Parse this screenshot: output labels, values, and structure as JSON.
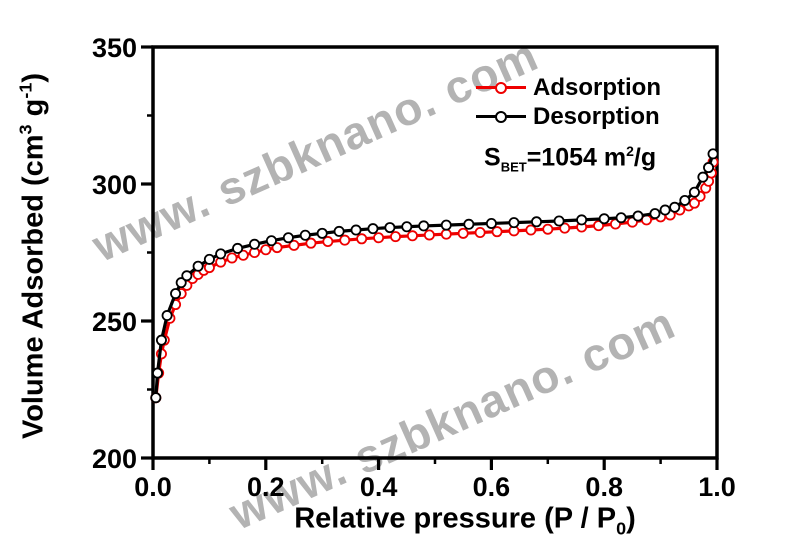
{
  "figure": {
    "background": "#ffffff",
    "watermark": {
      "text": "www. szbknano. com",
      "color": "#b3b3b3"
    }
  },
  "chart_data": {
    "type": "line",
    "title": "",
    "xlabel": "Relative pressure (P / P0)",
    "ylabel": "Volume Adsorbed (cm3 g-1)",
    "xlabel_parts": {
      "pre": "Relative pressure (P / P",
      "sub": "0",
      "post": ")"
    },
    "ylabel_parts": {
      "pre": "Volume Adsorbed (cm",
      "sup1": "3",
      "mid": " g",
      "sup2": "-1",
      "post": ")"
    },
    "xlim": [
      0.0,
      1.0
    ],
    "ylim": [
      200,
      350
    ],
    "grid": false,
    "x_ticks": [
      0.0,
      0.2,
      0.4,
      0.6,
      0.8,
      1.0
    ],
    "x_tick_labels": [
      "0.0",
      "0.2",
      "0.4",
      "0.6",
      "0.8",
      "1.0"
    ],
    "x_minor_ticks": [
      0.1,
      0.3,
      0.5,
      0.7,
      0.9
    ],
    "y_ticks": [
      200,
      250,
      300,
      350
    ],
    "y_tick_labels": [
      "200",
      "250",
      "300",
      "350"
    ],
    "y_minor_ticks": [
      225,
      275,
      325
    ],
    "legend_position": "top-right",
    "annotation": {
      "pre": "S",
      "sub": "BET",
      "mid": "=1054 m",
      "sup": "2",
      "post": "/g"
    },
    "series": [
      {
        "name": "Adsorption",
        "color": "#ee0000",
        "marker": "open-circle",
        "points": [
          [
            0.005,
            222
          ],
          [
            0.01,
            231
          ],
          [
            0.015,
            238
          ],
          [
            0.02,
            243
          ],
          [
            0.03,
            251
          ],
          [
            0.04,
            256
          ],
          [
            0.05,
            260
          ],
          [
            0.06,
            263
          ],
          [
            0.07,
            265.5
          ],
          [
            0.08,
            267
          ],
          [
            0.09,
            268.5
          ],
          [
            0.1,
            269.5
          ],
          [
            0.12,
            271.5
          ],
          [
            0.14,
            273
          ],
          [
            0.16,
            274
          ],
          [
            0.18,
            275
          ],
          [
            0.2,
            276
          ],
          [
            0.22,
            276.8
          ],
          [
            0.25,
            277.6
          ],
          [
            0.28,
            278.4
          ],
          [
            0.31,
            279
          ],
          [
            0.34,
            279.5
          ],
          [
            0.37,
            280
          ],
          [
            0.4,
            280.4
          ],
          [
            0.43,
            280.8
          ],
          [
            0.46,
            281.1
          ],
          [
            0.49,
            281.4
          ],
          [
            0.52,
            281.7
          ],
          [
            0.55,
            282
          ],
          [
            0.58,
            282.3
          ],
          [
            0.61,
            282.6
          ],
          [
            0.64,
            282.9
          ],
          [
            0.67,
            283.2
          ],
          [
            0.7,
            283.5
          ],
          [
            0.73,
            283.9
          ],
          [
            0.76,
            284.3
          ],
          [
            0.79,
            284.8
          ],
          [
            0.82,
            285.4
          ],
          [
            0.85,
            286.1
          ],
          [
            0.875,
            286.9
          ],
          [
            0.9,
            288
          ],
          [
            0.917,
            288.7
          ],
          [
            0.934,
            290.5
          ],
          [
            0.95,
            292
          ],
          [
            0.96,
            293
          ],
          [
            0.97,
            295.5
          ],
          [
            0.98,
            298.5
          ],
          [
            0.985,
            301
          ],
          [
            0.99,
            304
          ],
          [
            0.993,
            308
          ]
        ]
      },
      {
        "name": "Desorption",
        "color": "#000000",
        "marker": "open-circle",
        "points": [
          [
            0.005,
            222
          ],
          [
            0.008,
            231
          ],
          [
            0.015,
            243
          ],
          [
            0.025,
            252
          ],
          [
            0.04,
            260
          ],
          [
            0.05,
            264
          ],
          [
            0.06,
            266.5
          ],
          [
            0.08,
            270
          ],
          [
            0.1,
            272.5
          ],
          [
            0.12,
            274.5
          ],
          [
            0.15,
            276.5
          ],
          [
            0.18,
            278
          ],
          [
            0.21,
            279.3
          ],
          [
            0.24,
            280.4
          ],
          [
            0.27,
            281.3
          ],
          [
            0.3,
            282
          ],
          [
            0.33,
            282.7
          ],
          [
            0.36,
            283.2
          ],
          [
            0.39,
            283.7
          ],
          [
            0.42,
            284.1
          ],
          [
            0.45,
            284.4
          ],
          [
            0.48,
            284.7
          ],
          [
            0.52,
            285
          ],
          [
            0.56,
            285.3
          ],
          [
            0.6,
            285.6
          ],
          [
            0.64,
            285.9
          ],
          [
            0.68,
            286.2
          ],
          [
            0.72,
            286.5
          ],
          [
            0.76,
            286.9
          ],
          [
            0.8,
            287.3
          ],
          [
            0.83,
            287.7
          ],
          [
            0.86,
            288.3
          ],
          [
            0.89,
            289.2
          ],
          [
            0.908,
            290.5
          ],
          [
            0.925,
            291.5
          ],
          [
            0.943,
            294
          ],
          [
            0.96,
            297
          ],
          [
            0.975,
            302.5
          ],
          [
            0.985,
            306
          ],
          [
            0.993,
            311
          ]
        ]
      }
    ]
  }
}
